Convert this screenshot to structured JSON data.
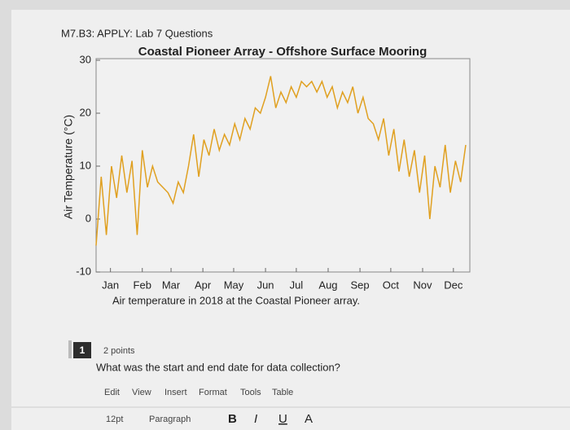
{
  "header": {
    "title": "M7.B3: APPLY: Lab 7 Questions"
  },
  "chart_data": {
    "type": "line",
    "title": "Coastal Pioneer Array - Offshore Surface Mooring",
    "y_label": "Air Temperature (°C)",
    "caption": "Air temperature in 2018 at the Coastal Pioneer array.",
    "x": [
      1,
      6,
      11,
      16,
      21,
      26,
      31,
      36,
      41,
      46,
      51,
      56,
      61,
      66,
      71,
      76,
      81,
      86,
      91,
      96,
      101,
      106,
      111,
      116,
      121,
      126,
      131,
      136,
      141,
      146,
      151,
      156,
      161,
      166,
      171,
      176,
      181,
      186,
      191,
      196,
      201,
      206,
      211,
      216,
      221,
      226,
      231,
      236,
      241,
      246,
      251,
      256,
      261,
      266,
      271,
      276,
      281,
      286,
      291,
      296,
      301,
      306,
      311,
      316,
      321,
      326,
      331,
      336,
      341,
      346,
      351,
      356,
      361
    ],
    "series": [
      {
        "name": "Air temperature",
        "color": "#e0a020",
        "values": [
          -5,
          8,
          -3,
          10,
          4,
          12,
          5,
          11,
          -3,
          13,
          6,
          10,
          7,
          6,
          5,
          3,
          7,
          5,
          10,
          16,
          8,
          15,
          12,
          17,
          13,
          16,
          14,
          18,
          15,
          19,
          17,
          21,
          20,
          23,
          27,
          21,
          24,
          22,
          25,
          23,
          26,
          25,
          26,
          24,
          26,
          23,
          25,
          21,
          24,
          22,
          25,
          20,
          23,
          19,
          18,
          15,
          19,
          12,
          17,
          9,
          15,
          8,
          13,
          5,
          12,
          0,
          10,
          6,
          14,
          5,
          11,
          7,
          14
        ]
      }
    ],
    "xlim": [
      1,
      365
    ],
    "xticks": [
      {
        "value": 15,
        "label": "Jan"
      },
      {
        "value": 46,
        "label": "Feb"
      },
      {
        "value": 74,
        "label": "Mar"
      },
      {
        "value": 105,
        "label": "Apr"
      },
      {
        "value": 135,
        "label": "May"
      },
      {
        "value": 166,
        "label": "Jun"
      },
      {
        "value": 196,
        "label": "Jul"
      },
      {
        "value": 227,
        "label": "Aug"
      },
      {
        "value": 258,
        "label": "Sep"
      },
      {
        "value": 288,
        "label": "Oct"
      },
      {
        "value": 319,
        "label": "Nov"
      },
      {
        "value": 349,
        "label": "Dec"
      }
    ],
    "ylim": [
      -10,
      30
    ],
    "yticks": [
      -10,
      0,
      10,
      20,
      30
    ],
    "grid": false
  },
  "question": {
    "number": "1",
    "points": "2 points",
    "text": "What was the start and end date for data collection?"
  },
  "toolbar": {
    "menu": [
      "Edit",
      "View",
      "Insert",
      "Format",
      "Tools",
      "Table"
    ],
    "font_size": "12pt",
    "block": "Paragraph",
    "format": [
      "B",
      "I",
      "U",
      "A"
    ]
  }
}
